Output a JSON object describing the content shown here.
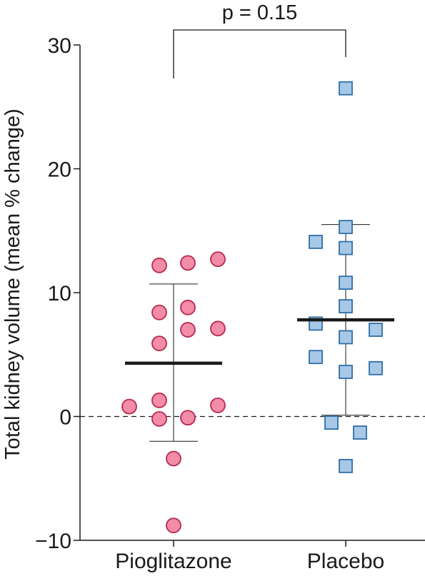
{
  "chart_data": {
    "type": "scatter",
    "ylabel": "Total kidney volume (mean % change)",
    "ylim": [
      -10,
      30
    ],
    "yticks": [
      -10,
      0,
      10,
      20,
      30
    ],
    "ytick_labels": [
      "−10",
      "0",
      "10",
      "20",
      "30"
    ],
    "categories": [
      "Pioglitazone",
      "Placebo"
    ],
    "reference_line": 0,
    "groups": [
      {
        "category": "Pioglitazone",
        "marker": "circle",
        "fill": "#f28ca8",
        "stroke": "#b8284f",
        "mean": 4.3,
        "sd_low": -2.0,
        "sd_high": 10.7,
        "points": [
          {
            "x": -0.1,
            "y": 12.2
          },
          {
            "x": 0.1,
            "y": 12.4
          },
          {
            "x": 0.31,
            "y": 12.7
          },
          {
            "x": -0.1,
            "y": 8.4
          },
          {
            "x": 0.1,
            "y": 8.8
          },
          {
            "x": -0.1,
            "y": 5.9
          },
          {
            "x": 0.1,
            "y": 7.0
          },
          {
            "x": 0.31,
            "y": 7.1
          },
          {
            "x": -0.31,
            "y": 0.8
          },
          {
            "x": -0.1,
            "y": 1.3
          },
          {
            "x": 0.31,
            "y": 0.9
          },
          {
            "x": -0.1,
            "y": -0.2
          },
          {
            "x": 0.1,
            "y": -0.1
          },
          {
            "x": 0.0,
            "y": -3.4
          },
          {
            "x": 0.0,
            "y": -8.8
          }
        ]
      },
      {
        "category": "Placebo",
        "marker": "square",
        "fill": "#a7c8e6",
        "stroke": "#2f6fa8",
        "mean": 7.8,
        "sd_low": 0.1,
        "sd_high": 15.5,
        "points": [
          {
            "x": 0.0,
            "y": 26.5
          },
          {
            "x": 0.0,
            "y": 15.3
          },
          {
            "x": -0.21,
            "y": 14.1
          },
          {
            "x": 0.0,
            "y": 13.6
          },
          {
            "x": 0.0,
            "y": 10.8
          },
          {
            "x": 0.0,
            "y": 8.9
          },
          {
            "x": -0.21,
            "y": 7.5
          },
          {
            "x": 0.21,
            "y": 7.0
          },
          {
            "x": 0.0,
            "y": 6.4
          },
          {
            "x": -0.21,
            "y": 4.8
          },
          {
            "x": 0.21,
            "y": 3.9
          },
          {
            "x": 0.0,
            "y": 3.6
          },
          {
            "x": -0.1,
            "y": -0.5
          },
          {
            "x": 0.1,
            "y": -1.3
          },
          {
            "x": 0.0,
            "y": -4.0
          }
        ]
      }
    ],
    "annotation": {
      "text": "p = 0.15",
      "between": [
        "Pioglitazone",
        "Placebo"
      ]
    }
  }
}
